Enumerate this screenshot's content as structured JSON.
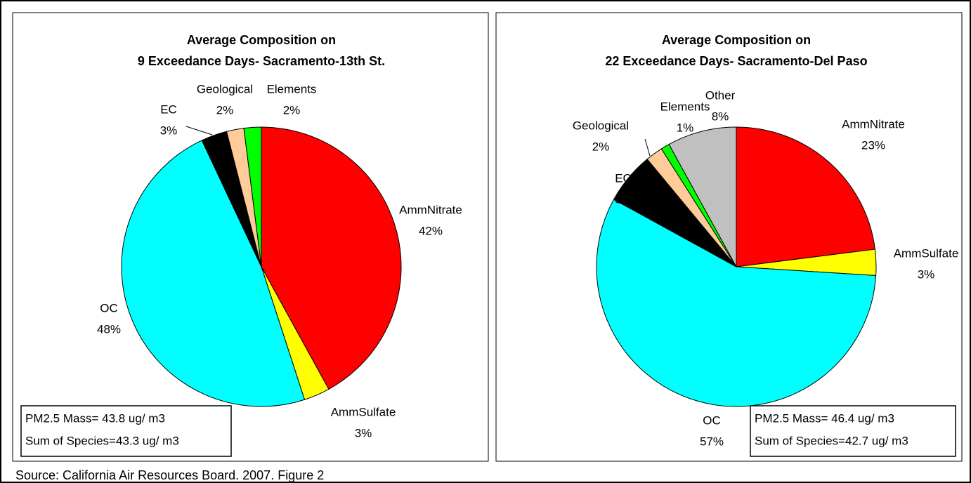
{
  "chart_data": [
    {
      "type": "pie",
      "title": [
        "Average Composition on",
        "9 Exceedance Days- Sacramento-13th St."
      ],
      "categories": [
        "AmmNitrate",
        "AmmSulfate",
        "OC",
        "EC",
        "Geological",
        "Elements"
      ],
      "values": [
        42,
        3,
        48,
        3,
        2,
        2
      ],
      "value_labels": [
        "42%",
        "3%",
        "48%",
        "3%",
        "2%",
        "2%"
      ],
      "colors": [
        "#ff0000",
        "#ffff00",
        "#00ffff",
        "#000000",
        "#ffcc99",
        "#00ff00"
      ],
      "notes": [
        "PM2.5 Mass= 43.8 ug/ m3",
        "Sum of Species=43.3 ug/ m3"
      ]
    },
    {
      "type": "pie",
      "title": [
        "Average Composition on",
        "22 Exceedance Days- Sacramento-Del Paso"
      ],
      "categories": [
        "AmmNitrate",
        "AmmSulfate",
        "OC",
        "EC",
        "Geological",
        "Elements",
        "Other"
      ],
      "values": [
        23,
        3,
        57,
        6,
        2,
        1,
        8
      ],
      "value_labels": [
        "23%",
        "3%",
        "57%",
        "6%",
        "2%",
        "1%",
        "8%"
      ],
      "colors": [
        "#ff0000",
        "#ffff00",
        "#00ffff",
        "#000000",
        "#ffcc99",
        "#00ff00",
        "#c0c0c0"
      ],
      "notes": [
        "PM2.5 Mass= 46.4 ug/ m3",
        "Sum of Species=42.7 ug/ m3"
      ]
    }
  ],
  "source": "Source:  California Air Resources Board. 2007.   Figure 2"
}
